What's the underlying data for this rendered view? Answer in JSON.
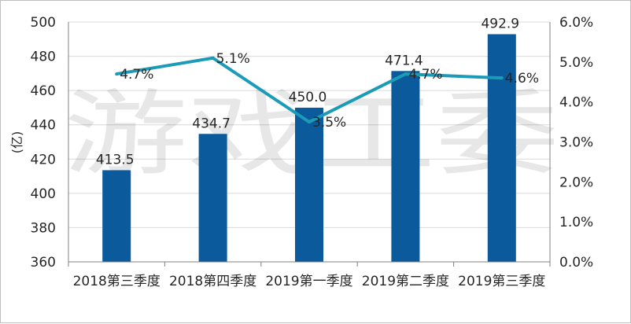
{
  "watermark": "游戏工委",
  "chart_data": {
    "type": "bar",
    "categories": [
      "2018第三季度",
      "2018第四季度",
      "2019第一季度",
      "2019第二季度",
      "2019第三季度"
    ],
    "series": [
      {
        "type": "bar",
        "values": [
          413.5,
          434.7,
          450.0,
          471.4,
          492.9
        ],
        "labels": [
          "413.5",
          "434.7",
          "450.0",
          "471.4",
          "492.9"
        ],
        "color": "#0b5a9b",
        "axis": "left"
      },
      {
        "type": "line",
        "values": [
          4.7,
          5.1,
          3.5,
          4.7,
          4.6
        ],
        "labels": [
          "4.7%",
          "5.1%",
          "3.5%",
          "4.7%",
          "4.6%"
        ],
        "color": "#1b9bb7",
        "axis": "right"
      }
    ],
    "ylabel": "(亿)",
    "ylim": [
      360,
      500
    ],
    "y_ticks": [
      "360",
      "380",
      "400",
      "420",
      "440",
      "460",
      "480",
      "500"
    ],
    "y2lim": [
      0,
      6
    ],
    "y2_ticks": [
      "0.0%",
      "1.0%",
      "2.0%",
      "3.0%",
      "4.0%",
      "5.0%",
      "6.0%"
    ],
    "grid": true
  }
}
